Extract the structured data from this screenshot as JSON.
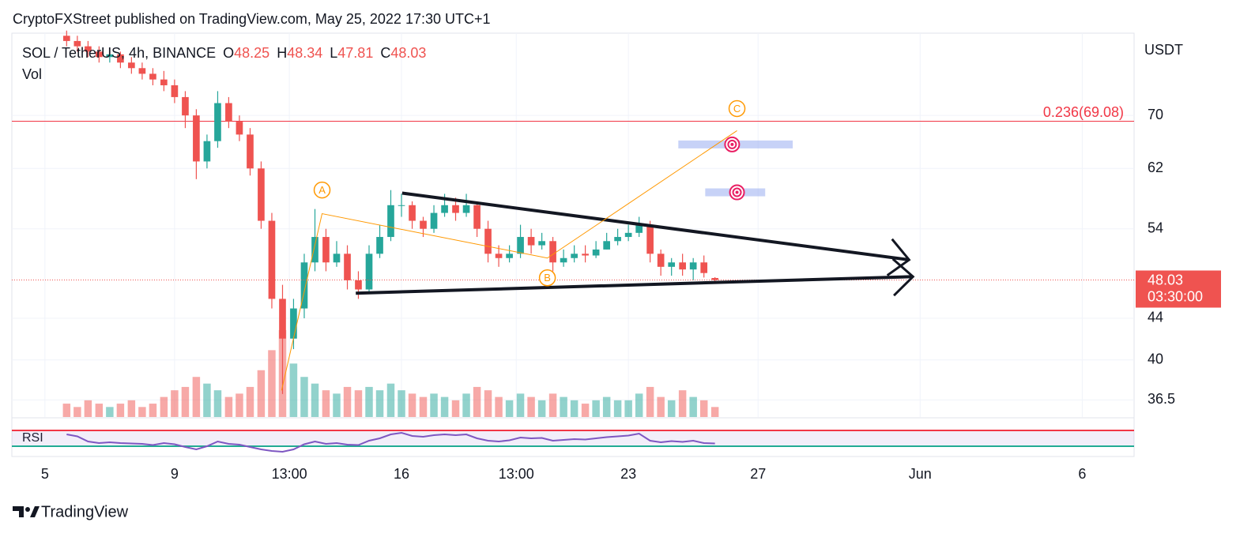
{
  "header": {
    "title": "CryptoFXStreet published on TradingView.com, May 25, 2022 17:30 UTC+1"
  },
  "footer": {
    "brand": "TradingView"
  },
  "chart_data": {
    "type": "candlestick",
    "symbol": "SOL / TetherUS, 4h, BINANCE",
    "ohlc_labels": [
      "O",
      "H",
      "L",
      "C"
    ],
    "volume_label": "Vol",
    "indicator_label": "RSI",
    "y_axis_label": "USDT",
    "countdown": "03:30:00",
    "up_color": "#26a69a",
    "down_color": "#ef5350",
    "log_scale": true,
    "grid": true,
    "xlim": [
      3.98,
      38.6
    ],
    "ylim": [
      35.1,
      84.5
    ],
    "yticks": [
      70,
      62,
      54,
      44,
      40,
      36.5
    ],
    "xticks": [
      5,
      9,
      {
        "value": 12.54,
        "label": "13:00"
      },
      16,
      {
        "value": 19.54,
        "label": "13:00"
      },
      23,
      27,
      {
        "value": 32,
        "label": "Jun"
      },
      {
        "value": 37,
        "label": "6"
      }
    ],
    "x": [
      5.67,
      6,
      6.33,
      6.67,
      7,
      7.33,
      7.67,
      8,
      8.33,
      8.67,
      9,
      9.33,
      9.67,
      10,
      10.33,
      10.67,
      11,
      11.33,
      11.67,
      12,
      12.33,
      12.67,
      13,
      13.33,
      13.67,
      14,
      14.33,
      14.67,
      15,
      15.33,
      15.67,
      16,
      16.33,
      16.67,
      17,
      17.33,
      17.67,
      18,
      18.33,
      18.67,
      19,
      19.33,
      19.67,
      20,
      20.33,
      20.67,
      21,
      21.33,
      21.67,
      22,
      22.33,
      22.67,
      23,
      23.33,
      23.67,
      24,
      24.33,
      24.67,
      25,
      25.33,
      25.67
    ],
    "open": [
      84,
      83,
      82,
      81,
      80,
      80.5,
      79,
      78,
      77,
      76,
      75,
      73,
      70,
      63,
      66,
      72,
      69,
      67,
      62,
      55,
      46,
      42,
      45,
      50,
      53,
      50,
      51,
      48,
      47,
      51,
      53,
      57,
      57,
      55,
      54,
      56,
      57,
      56,
      57,
      54,
      51,
      50.5,
      51,
      53,
      52,
      52.5,
      50,
      50.5,
      51,
      50.8,
      51.5,
      52.5,
      53,
      53.5,
      54.5,
      51,
      49.5,
      50,
      49.2,
      50,
      48.25
    ],
    "high": [
      85,
      84,
      83,
      82,
      81.5,
      81,
      80,
      79,
      78,
      77.5,
      76,
      74,
      71,
      67,
      74,
      73,
      70,
      68,
      63,
      56,
      47.5,
      46,
      51,
      56.5,
      54,
      52.5,
      52,
      49,
      52,
      54.5,
      59,
      58.5,
      57.5,
      55.5,
      57,
      58.5,
      58,
      58.5,
      57.5,
      55,
      52,
      52,
      54.5,
      54,
      53.5,
      53,
      51.5,
      52,
      52,
      52.5,
      53.5,
      54,
      54.5,
      55.5,
      55,
      51.5,
      50.5,
      51,
      50.5,
      50.8,
      48.34
    ],
    "low": [
      82,
      81,
      80,
      79,
      79,
      78,
      77,
      76,
      75,
      74,
      72,
      68,
      60.5,
      62,
      65,
      68,
      66,
      61,
      54,
      45,
      37,
      41,
      44,
      49,
      49,
      49.5,
      47,
      46,
      46.5,
      50.5,
      52.5,
      55.5,
      54,
      53,
      53.5,
      55.5,
      55,
      55.5,
      53,
      50,
      49.5,
      50,
      50.5,
      51,
      51.5,
      49,
      49.5,
      50,
      50,
      50.5,
      51.5,
      52,
      52.5,
      53,
      50,
      48.5,
      48.5,
      48.5,
      48,
      48.3,
      47.81
    ],
    "close": [
      83,
      82,
      81,
      80,
      80.5,
      79,
      78,
      77,
      76,
      75,
      73,
      70,
      63,
      66,
      72,
      69,
      67,
      62,
      55,
      46,
      42,
      45,
      50,
      53,
      50,
      51,
      48,
      47,
      51,
      53,
      57,
      57,
      55,
      54,
      56,
      57,
      56,
      57,
      54,
      51,
      50.5,
      51,
      53,
      52,
      52.5,
      50,
      50.5,
      51,
      50.8,
      51.5,
      52.5,
      53,
      53.5,
      54.5,
      51,
      49.5,
      50,
      49.2,
      50,
      48.8,
      48.03
    ],
    "volume": [
      4,
      3,
      5,
      4,
      3,
      4,
      5,
      3,
      4,
      6,
      8,
      9,
      12,
      10,
      8,
      6,
      7,
      9,
      14,
      20,
      26,
      16,
      12,
      10,
      8,
      7,
      9,
      8,
      9,
      8,
      10,
      8,
      7,
      6,
      7,
      6,
      5,
      7,
      9,
      8,
      6,
      5,
      7,
      6,
      5,
      7,
      6,
      5,
      4,
      5,
      6,
      5,
      5,
      7,
      9,
      6,
      5,
      8,
      6,
      5,
      3
    ],
    "rsi": [
      60,
      55,
      42,
      38,
      40,
      38,
      37,
      36,
      33,
      38,
      35,
      28,
      22,
      30,
      42,
      36,
      34,
      28,
      22,
      18,
      16,
      22,
      35,
      42,
      36,
      38,
      34,
      33,
      44,
      50,
      60,
      64,
      56,
      54,
      58,
      60,
      58,
      60,
      50,
      44,
      42,
      45,
      52,
      50,
      51,
      44,
      46,
      48,
      47,
      50,
      53,
      55,
      57,
      62,
      44,
      40,
      43,
      41,
      44,
      38,
      37
    ],
    "rsi_ylim": [
      0,
      100
    ],
    "rsi_levels": [
      70,
      30
    ],
    "fib_label": "0.236(69.08)",
    "fib_value": 69.08,
    "wave": {
      "x": [
        12.3,
        13.55,
        20.5,
        26.35
      ],
      "y": [
        37.3,
        55.9,
        50.5,
        67.6
      ],
      "labels": [
        null,
        "A",
        "B",
        "C"
      ]
    },
    "trendlines": [
      {
        "x": [
          16.02,
          31.66
        ],
        "y": [
          58.6,
          50.3
        ]
      },
      {
        "x": [
          14.59,
          31.78
        ],
        "y": [
          46.6,
          48.4
        ]
      }
    ],
    "targets": [
      {
        "x": [
          24.54,
          28.07
        ],
        "y": 65.5,
        "icon_x": 26.2
      },
      {
        "x": [
          25.37,
          27.22
        ],
        "y": 58.7,
        "icon_x": 26.35
      }
    ]
  }
}
